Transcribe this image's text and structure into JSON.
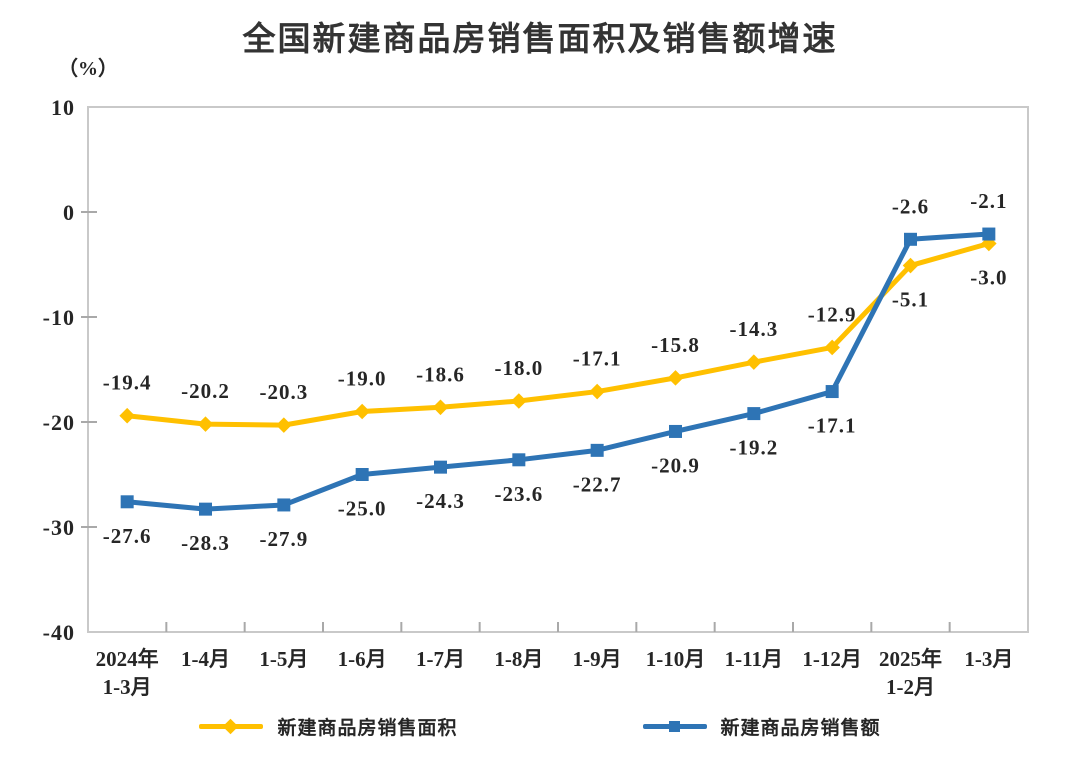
{
  "title": "全国新建商品房销售面积及销售额增速",
  "y_axis_unit": "（%）",
  "colors": {
    "series_area": "#FFC000",
    "series_amount": "#2E74B5",
    "axis_border": "#C9C9C9",
    "tick": "#A9A9A9",
    "text": "#262626",
    "title_text": "#333333",
    "background": "#FFFFFF"
  },
  "chart_data": {
    "type": "line",
    "title": "全国新建商品房销售面积及销售额增速",
    "xlabel": "",
    "ylabel": "（%）",
    "ylim": [
      -40,
      10
    ],
    "y_ticks": [
      10,
      0,
      -10,
      -20,
      -30,
      -40
    ],
    "grid": false,
    "legend_position": "bottom",
    "categories": [
      "2024年\n1-3月",
      "1-4月",
      "1-5月",
      "1-6月",
      "1-7月",
      "1-8月",
      "1-9月",
      "1-10月",
      "1-11月",
      "1-12月",
      "2025年\n1-2月",
      "1-3月"
    ],
    "series": [
      {
        "name": "新建商品房销售面积",
        "color": "#FFC000",
        "marker": "diamond",
        "values": [
          -19.4,
          -20.2,
          -20.3,
          -19.0,
          -18.6,
          -18.0,
          -17.1,
          -15.8,
          -14.3,
          -12.9,
          -5.1,
          -3.0
        ],
        "label_side": [
          "above",
          "above",
          "above",
          "above",
          "above",
          "above",
          "above",
          "above",
          "above",
          "above",
          "below",
          "below"
        ]
      },
      {
        "name": "新建商品房销售额",
        "color": "#2E74B5",
        "marker": "square",
        "values": [
          -27.6,
          -28.3,
          -27.9,
          -25.0,
          -24.3,
          -23.6,
          -22.7,
          -20.9,
          -19.2,
          -17.1,
          -2.6,
          -2.1
        ],
        "label_side": [
          "below",
          "below",
          "below",
          "below",
          "below",
          "below",
          "below",
          "below",
          "below",
          "below",
          "above",
          "above"
        ]
      }
    ]
  },
  "legend": {
    "items": [
      {
        "label": "新建商品房销售面积",
        "marker": "diamond-icon"
      },
      {
        "label": "新建商品房销售额",
        "marker": "square-icon"
      }
    ]
  }
}
